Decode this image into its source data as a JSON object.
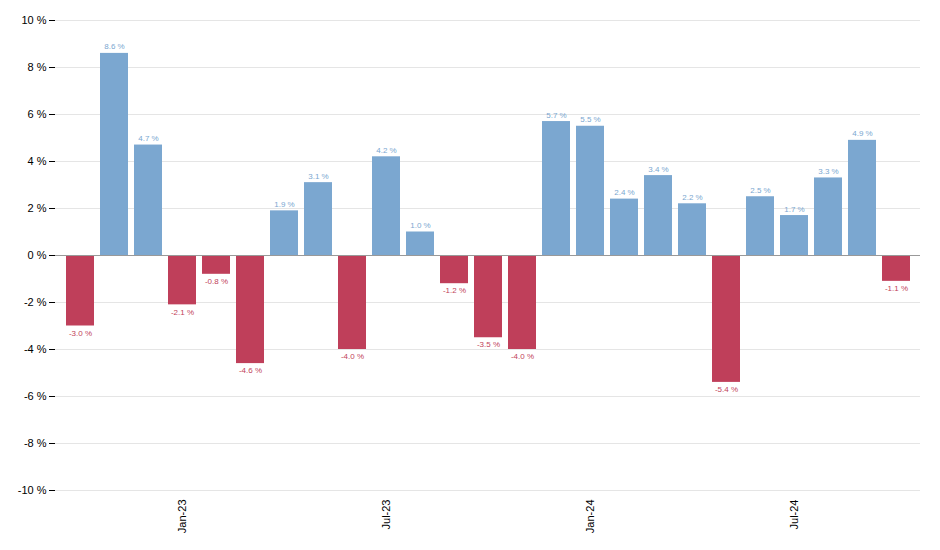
{
  "chart_data": {
    "type": "bar",
    "categories": [
      null,
      null,
      null,
      "Jan-23",
      null,
      null,
      null,
      null,
      null,
      "Jul-23",
      null,
      null,
      null,
      null,
      null,
      "Jan-24",
      null,
      null,
      null,
      null,
      null,
      "Jul-24",
      null,
      null,
      null
    ],
    "values": [
      -3.0,
      8.6,
      4.7,
      -2.1,
      -0.8,
      -4.6,
      1.9,
      3.1,
      -4.0,
      4.2,
      1.0,
      -1.2,
      -3.5,
      -4.0,
      5.7,
      5.5,
      2.4,
      3.4,
      2.2,
      -5.4,
      2.5,
      1.7,
      3.3,
      4.9,
      -1.1
    ],
    "value_labels": [
      "-3.0 %",
      "8.6 %",
      "4.7 %",
      "-2.1 %",
      "-0.8 %",
      "-4.6 %",
      "1.9 %",
      "3.1 %",
      "-4.0 %",
      "4.2 %",
      "1.0 %",
      "-1.2 %",
      "-3.5 %",
      "-4.0 %",
      "5.7 %",
      "5.5 %",
      "2.4 %",
      "3.4 %",
      "2.2 %",
      "-5.4 %",
      "2.5 %",
      "1.7 %",
      "3.3 %",
      "4.9 %",
      "-1.1 %"
    ],
    "colors": [
      "#bf3f5a",
      "#7ba7d0",
      "#7ba7d0",
      "#bf3f5a",
      "#bf3f5a",
      "#bf3f5a",
      "#7ba7d0",
      "#7ba7d0",
      "#bf3f5a",
      "#7ba7d0",
      "#7ba7d0",
      "#bf3f5a",
      "#bf3f5a",
      "#bf3f5a",
      "#7ba7d0",
      "#7ba7d0",
      "#7ba7d0",
      "#7ba7d0",
      "#7ba7d0",
      "#bf3f5a",
      "#7ba7d0",
      "#7ba7d0",
      "#7ba7d0",
      "#7ba7d0",
      "#bf3f5a"
    ],
    "ylim": [
      -10,
      10
    ],
    "yticks": [
      {
        "value": -10,
        "label": "-10 %"
      },
      {
        "value": -8,
        "label": "-8 %"
      },
      {
        "value": -6,
        "label": "-6 %"
      },
      {
        "value": -4,
        "label": "-4 %"
      },
      {
        "value": -2,
        "label": "-2 %"
      },
      {
        "value": 0,
        "label": "0 %"
      },
      {
        "value": 2,
        "label": "2 %"
      },
      {
        "value": 4,
        "label": "4 %"
      },
      {
        "value": 6,
        "label": "6 %"
      },
      {
        "value": 8,
        "label": "8 %"
      },
      {
        "value": 10,
        "label": "10 %"
      }
    ],
    "grid": true,
    "data_labels": true
  }
}
